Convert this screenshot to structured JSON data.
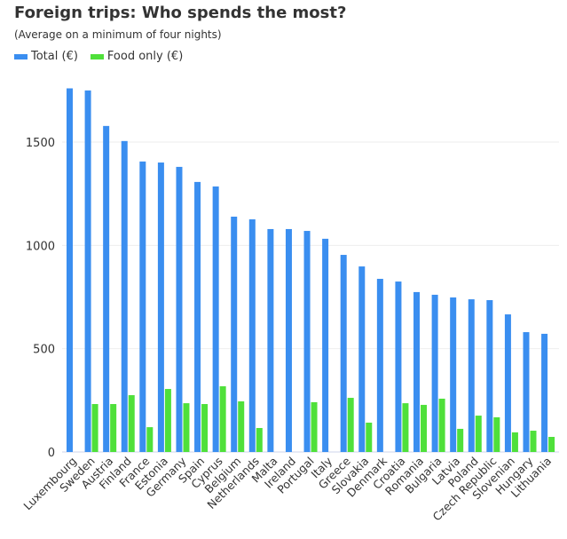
{
  "chart_data": {
    "type": "bar",
    "title": "Foreign trips: Who spends the most?",
    "subtitle": "(Average on a minimum of four nights)",
    "xlabel": "",
    "ylabel": "",
    "ylim": [
      0,
      1800
    ],
    "yticks": [
      0,
      500,
      1000,
      1500
    ],
    "grid": true,
    "legend_position": "top-left",
    "categories": [
      "Luxembourg",
      "Sweden",
      "Austria",
      "Finland",
      "France",
      "Estonia",
      "Germany",
      "Spain",
      "Cyprus",
      "Belgium",
      "Netherlands",
      "Malta",
      "Ireland",
      "Portugal",
      "Italy",
      "Greece",
      "Slovakia",
      "Denmark",
      "Croatia",
      "Romania",
      "Bulgaria",
      "Latvia",
      "Poland",
      "Czech Republic",
      "Slovenian",
      "Hungary",
      "Lithuania"
    ],
    "series": [
      {
        "name": "Total (€)",
        "color": "#3a8ef0",
        "values": [
          1760,
          1750,
          1578,
          1505,
          1406,
          1401,
          1380,
          1307,
          1285,
          1139,
          1126,
          1079,
          1079,
          1070,
          1032,
          954,
          898,
          838,
          825,
          774,
          761,
          748,
          739,
          735,
          666,
          580,
          572
        ]
      },
      {
        "name": "Food only (€)",
        "color": "#4fe03a",
        "values": [
          null,
          232,
          232,
          275,
          120,
          305,
          236,
          232,
          318,
          245,
          116,
          null,
          null,
          241,
          null,
          262,
          142,
          null,
          236,
          228,
          258,
          112,
          176,
          168,
          95,
          103,
          73
        ]
      }
    ]
  }
}
